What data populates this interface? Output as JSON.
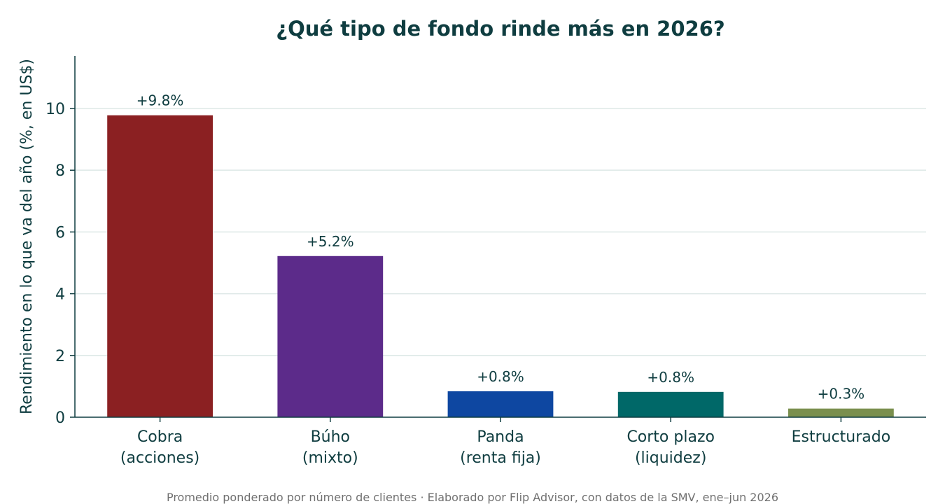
{
  "chart_data": {
    "type": "bar",
    "title": "¿Qué tipo de fondo rinde más en 2026?",
    "ylabel": "Rendimiento en lo que va del año (%, en US$)",
    "xlabel": "",
    "ylim": [
      0,
      11.7
    ],
    "yticks": [
      0,
      2,
      4,
      6,
      8,
      10
    ],
    "grid": true,
    "categories": [
      [
        "Cobra",
        "(acciones)"
      ],
      [
        "Búho",
        "(mixto)"
      ],
      [
        "Panda",
        "(renta fija)"
      ],
      [
        "Corto plazo",
        "(liquidez)"
      ],
      [
        "Estructurado"
      ]
    ],
    "values": [
      9.78,
      5.22,
      0.84,
      0.82,
      0.28
    ],
    "data_labels": [
      "+9.8%",
      "+5.2%",
      "+0.8%",
      "+0.8%",
      "+0.3%"
    ],
    "colors": [
      "#8b2022",
      "#5c2b8a",
      "#0e47a1",
      "#006868",
      "#7a8f4e"
    ],
    "footnote": "Promedio ponderado por número de clientes · Elaborado por Flip Advisor, con datos de la SMV, ene–jun 2026"
  }
}
